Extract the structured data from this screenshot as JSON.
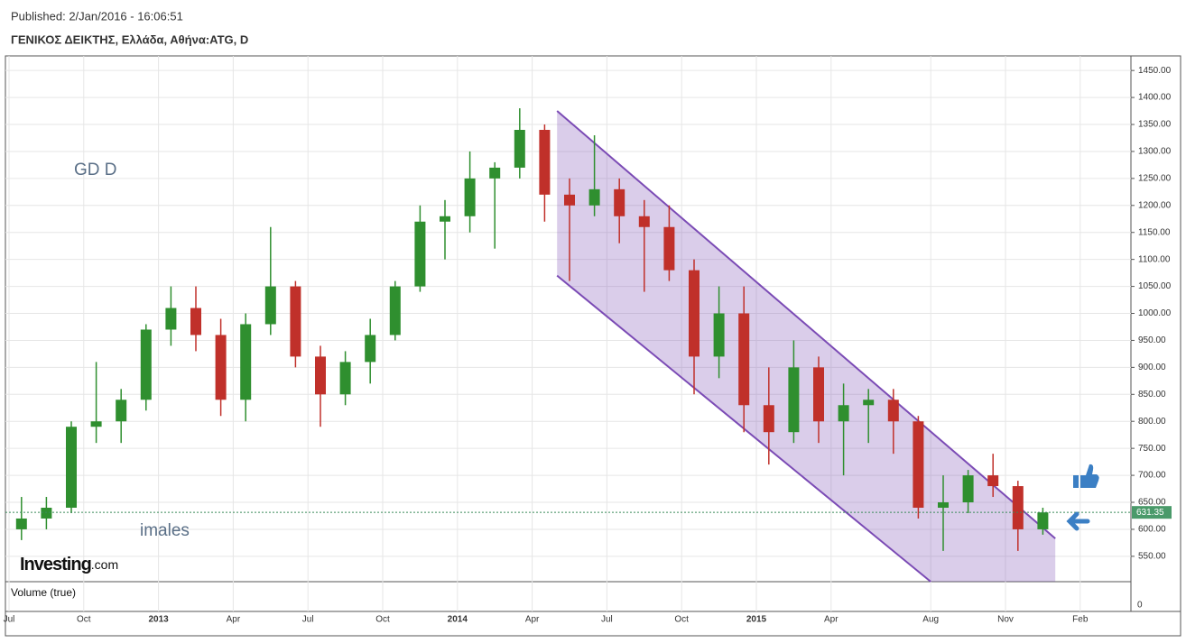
{
  "header": {
    "published": "Published: 2/Jan/2016 - 16:06:51",
    "instrument": "ΓΕΝΙΚΟΣ ΔΕΙΚΤΗΣ, Ελλάδα, Αθήνα:ATG, D"
  },
  "chart_data": {
    "type": "candlestick",
    "x": [
      "2012-07",
      "2012-08",
      "2012-09",
      "2012-10",
      "2012-11",
      "2012-12",
      "2013-01",
      "2013-02",
      "2013-03",
      "2013-04",
      "2013-05",
      "2013-06",
      "2013-07",
      "2013-08",
      "2013-09",
      "2013-10",
      "2013-11",
      "2013-12",
      "2014-01",
      "2014-02",
      "2014-03",
      "2014-04",
      "2014-05",
      "2014-06",
      "2014-07",
      "2014-08",
      "2014-09",
      "2014-10",
      "2014-11",
      "2014-12",
      "2015-01",
      "2015-02",
      "2015-03",
      "2015-04",
      "2015-05",
      "2015-06",
      "2015-07",
      "2015-08",
      "2015-09",
      "2015-10",
      "2015-11",
      "2015-12"
    ],
    "open": [
      600,
      620,
      640,
      790,
      800,
      840,
      970,
      1010,
      960,
      840,
      980,
      1050,
      920,
      850,
      910,
      960,
      1050,
      1170,
      1180,
      1250,
      1270,
      1340,
      1220,
      1200,
      1230,
      1180,
      1160,
      1080,
      920,
      1000,
      830,
      780,
      900,
      800,
      830,
      840,
      800,
      640,
      650,
      700,
      680,
      600
    ],
    "high": [
      660,
      660,
      800,
      910,
      860,
      980,
      1050,
      1050,
      990,
      1000,
      1160,
      1060,
      940,
      930,
      990,
      1060,
      1200,
      1210,
      1300,
      1280,
      1380,
      1350,
      1250,
      1330,
      1250,
      1210,
      1200,
      1100,
      1050,
      1050,
      900,
      950,
      920,
      870,
      860,
      860,
      810,
      700,
      710,
      740,
      690,
      640
    ],
    "low": [
      580,
      600,
      630,
      760,
      760,
      820,
      940,
      930,
      810,
      800,
      960,
      900,
      790,
      830,
      870,
      950,
      1040,
      1100,
      1150,
      1120,
      1250,
      1170,
      1060,
      1180,
      1130,
      1040,
      1060,
      850,
      880,
      780,
      720,
      760,
      760,
      700,
      760,
      740,
      620,
      560,
      630,
      660,
      560,
      590
    ],
    "close": [
      620,
      640,
      790,
      800,
      840,
      970,
      1010,
      960,
      840,
      980,
      1050,
      920,
      850,
      910,
      960,
      1050,
      1170,
      1180,
      1250,
      1270,
      1340,
      1220,
      1200,
      1230,
      1180,
      1160,
      1080,
      920,
      1000,
      830,
      780,
      900,
      800,
      830,
      840,
      800,
      640,
      650,
      700,
      680,
      600,
      631.35
    ],
    "up_color": "#2f8f2f",
    "down_color": "#c0302a",
    "last_price": 631.35,
    "channel": {
      "upper": [
        [
          "2014-05",
          1375
        ],
        [
          "2016-01",
          583
        ]
      ],
      "lower": [
        [
          "2014-05",
          1070
        ],
        [
          "2015-08",
          503
        ]
      ],
      "color": "#7b4bb5"
    },
    "ylim": [
      503,
      1477
    ],
    "yticks": [
      {
        "value": 550,
        "label": "550.00"
      },
      {
        "value": 600,
        "label": "600.00"
      },
      {
        "value": 650,
        "label": "650.00"
      },
      {
        "value": 700,
        "label": "700.00"
      },
      {
        "value": 750,
        "label": "750.00"
      },
      {
        "value": 800,
        "label": "800.00"
      },
      {
        "value": 850,
        "label": "850.00"
      },
      {
        "value": 900,
        "label": "900.00"
      },
      {
        "value": 950,
        "label": "950.00"
      },
      {
        "value": 1000,
        "label": "1000.00"
      },
      {
        "value": 1050,
        "label": "1050.00"
      },
      {
        "value": 1100,
        "label": "1100.00"
      },
      {
        "value": 1150,
        "label": "1150.00"
      },
      {
        "value": 1200,
        "label": "1200.00"
      },
      {
        "value": 1250,
        "label": "1250.00"
      },
      {
        "value": 1300,
        "label": "1300.00"
      },
      {
        "value": 1350,
        "label": "1350.00"
      },
      {
        "value": 1400,
        "label": "1400.00"
      },
      {
        "value": 1450,
        "label": "1450.00"
      }
    ],
    "xlim": [
      "2012-07",
      "2016-04"
    ],
    "xticks": [
      {
        "value": "2012-07",
        "label": "Jul"
      },
      {
        "value": "2012-10",
        "label": "Oct"
      },
      {
        "value": "2013-01",
        "label": "2013"
      },
      {
        "value": "2013-04",
        "label": "Apr"
      },
      {
        "value": "2013-07",
        "label": "Jul"
      },
      {
        "value": "2013-10",
        "label": "Oct"
      },
      {
        "value": "2014-01",
        "label": "2014"
      },
      {
        "value": "2014-04",
        "label": "Apr"
      },
      {
        "value": "2014-07",
        "label": "Jul"
      },
      {
        "value": "2014-10",
        "label": "Oct"
      },
      {
        "value": "2015-01",
        "label": "2015"
      },
      {
        "value": "2015-04",
        "label": "Apr"
      },
      {
        "value": "2015-08",
        "label": "Aug"
      },
      {
        "value": "2015-11",
        "label": "Nov"
      },
      {
        "value": "2016-02",
        "label": "Feb"
      }
    ],
    "grid": true,
    "annotations": [
      "GD   D",
      "imales"
    ],
    "logo": {
      "brand": "Investing",
      "suffix": ".com"
    },
    "volume_label": "Volume (true)",
    "volume_ticks": [
      0
    ]
  }
}
